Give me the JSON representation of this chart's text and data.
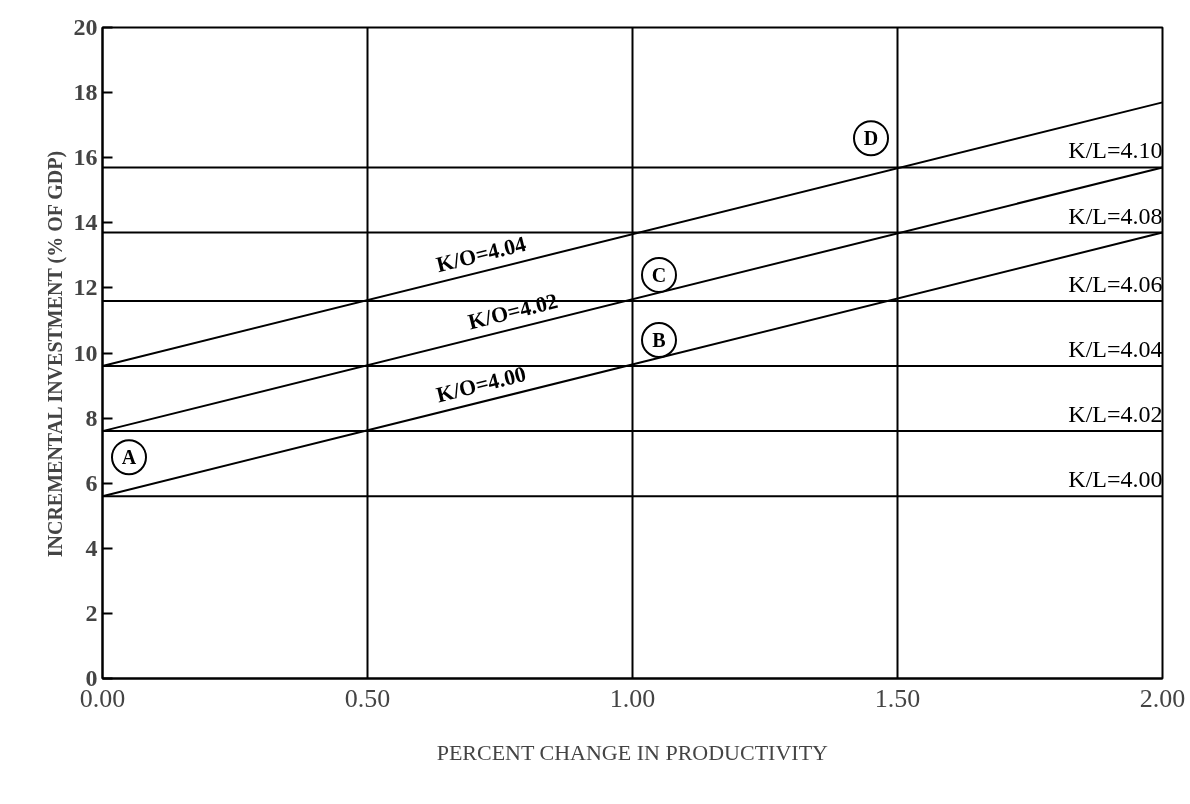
{
  "chart_data": {
    "type": "line",
    "xlabel": "PERCENT CHANGE IN PRODUCTIVITY",
    "ylabel": "INCREMENTAL INVESTMENT (% OF GDP)",
    "xlim": [
      0,
      2
    ],
    "ylim": [
      0,
      20
    ],
    "xticks": [
      {
        "value": 0,
        "label": "0.00"
      },
      {
        "value": 0.5,
        "label": "0.50"
      },
      {
        "value": 1,
        "label": "1.00"
      },
      {
        "value": 1.5,
        "label": "1.50"
      },
      {
        "value": 2,
        "label": "2.00"
      }
    ],
    "yticks": [
      0,
      2,
      4,
      6,
      8,
      10,
      12,
      14,
      16,
      18,
      20
    ],
    "grid": "x",
    "marker": "none",
    "line_style": "solid",
    "x": [
      0,
      2
    ],
    "series": [
      {
        "name": "K/L=4.00",
        "color": "#000000",
        "values": [
          5.6,
          5.6
        ]
      },
      {
        "name": "K/L=4.02",
        "color": "#000000",
        "values": [
          7.6,
          7.6
        ]
      },
      {
        "name": "K/L=4.04",
        "color": "#000000",
        "values": [
          9.6,
          9.6
        ]
      },
      {
        "name": "K/L=4.06",
        "color": "#000000",
        "values": [
          11.6,
          11.6
        ]
      },
      {
        "name": "K/L=4.08",
        "color": "#000000",
        "values": [
          13.7,
          13.7
        ]
      },
      {
        "name": "K/L=4.10",
        "color": "#000000",
        "values": [
          15.7,
          15.7
        ]
      },
      {
        "name": "K/O=4.00",
        "color": "#000000",
        "values": [
          5.6,
          13.7
        ]
      },
      {
        "name": "K/O=4.02",
        "color": "#000000",
        "values": [
          7.6,
          15.7
        ]
      },
      {
        "name": "K/O=4.04",
        "color": "#000000",
        "values": [
          9.6,
          17.7
        ]
      }
    ],
    "annotations": [
      {
        "text": "A",
        "x": 0.05,
        "y": 6.8
      },
      {
        "text": "B",
        "x": 1.05,
        "y": 10.4
      },
      {
        "text": "C",
        "x": 1.05,
        "y": 12.4
      },
      {
        "text": "D",
        "x": 1.45,
        "y": 16.6
      }
    ]
  }
}
